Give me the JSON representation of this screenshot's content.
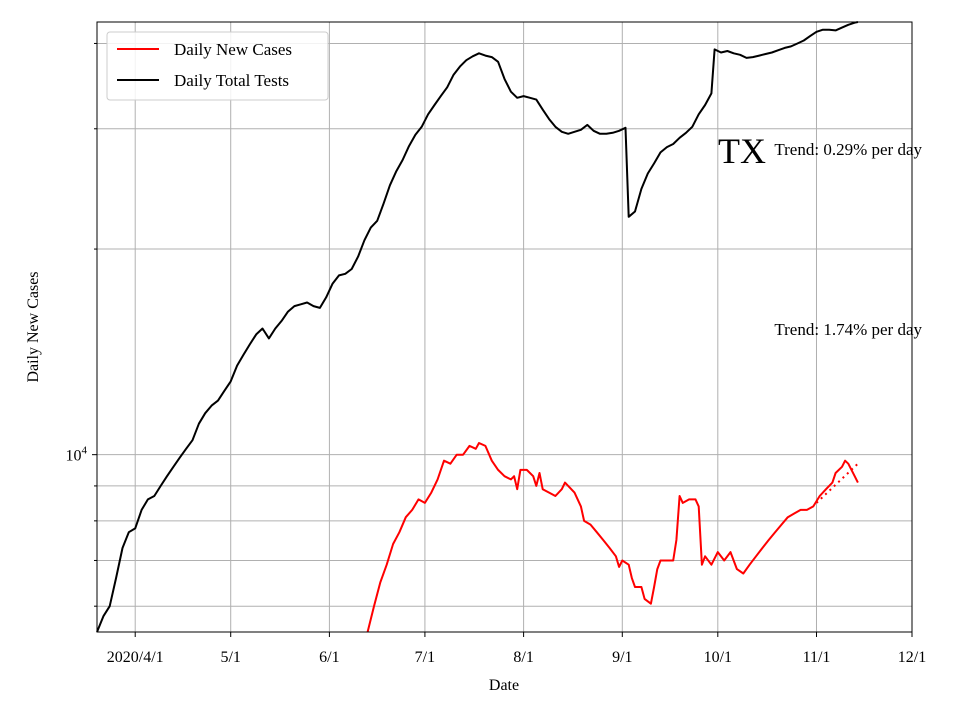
{
  "chart_data": {
    "type": "line",
    "y_scale": "log",
    "grid": true,
    "legend_position": "top-left",
    "xlabel": "Date",
    "ylabel": "Daily New Cases",
    "x_range": [
      "2020-03-20",
      "2020-12-01"
    ],
    "ylim": [
      5500,
      43000
    ],
    "x_ticks": [
      {
        "date": "2020-04-01",
        "label": "2020/4/1"
      },
      {
        "date": "2020-05-01",
        "label": "5/1"
      },
      {
        "date": "2020-06-01",
        "label": "6/1"
      },
      {
        "date": "2020-07-01",
        "label": "7/1"
      },
      {
        "date": "2020-08-01",
        "label": "8/1"
      },
      {
        "date": "2020-09-01",
        "label": "9/1"
      },
      {
        "date": "2020-10-01",
        "label": "10/1"
      },
      {
        "date": "2020-11-01",
        "label": "11/1"
      },
      {
        "date": "2020-12-01",
        "label": "12/1"
      }
    ],
    "y_major_tick": {
      "value": 10000,
      "label_base": "10",
      "label_exp": "4"
    },
    "y_minor_ticks": [
      6000,
      7000,
      8000,
      9000,
      20000,
      30000,
      40000
    ],
    "annotations": {
      "state": "TX",
      "trend_tests": "Trend: 0.29% per day",
      "trend_cases": "Trend: 1.74% per day"
    },
    "series": [
      {
        "name": "Daily New Cases",
        "color": "#ff0000",
        "points": [
          [
            "2020-06-13",
            5500
          ],
          [
            "2020-06-15",
            6000
          ],
          [
            "2020-06-17",
            6500
          ],
          [
            "2020-06-19",
            6900
          ],
          [
            "2020-06-21",
            7400
          ],
          [
            "2020-06-23",
            7700
          ],
          [
            "2020-06-25",
            8100
          ],
          [
            "2020-06-27",
            8300
          ],
          [
            "2020-06-29",
            8600
          ],
          [
            "2020-07-01",
            8500
          ],
          [
            "2020-07-03",
            8800
          ],
          [
            "2020-07-05",
            9200
          ],
          [
            "2020-07-07",
            9800
          ],
          [
            "2020-07-09",
            9700
          ],
          [
            "2020-07-11",
            10000
          ],
          [
            "2020-07-13",
            10000
          ],
          [
            "2020-07-15",
            10300
          ],
          [
            "2020-07-17",
            10200
          ],
          [
            "2020-07-18",
            10400
          ],
          [
            "2020-07-20",
            10300
          ],
          [
            "2020-07-22",
            9800
          ],
          [
            "2020-07-24",
            9500
          ],
          [
            "2020-07-26",
            9300
          ],
          [
            "2020-07-28",
            9200
          ],
          [
            "2020-07-29",
            9300
          ],
          [
            "2020-07-30",
            8900
          ],
          [
            "2020-07-31",
            9500
          ],
          [
            "2020-08-02",
            9500
          ],
          [
            "2020-08-04",
            9300
          ],
          [
            "2020-08-05",
            9000
          ],
          [
            "2020-08-06",
            9400
          ],
          [
            "2020-08-07",
            8900
          ],
          [
            "2020-08-09",
            8800
          ],
          [
            "2020-08-11",
            8700
          ],
          [
            "2020-08-13",
            8900
          ],
          [
            "2020-08-14",
            9100
          ],
          [
            "2020-08-15",
            9000
          ],
          [
            "2020-08-17",
            8800
          ],
          [
            "2020-08-19",
            8400
          ],
          [
            "2020-08-20",
            8000
          ],
          [
            "2020-08-22",
            7900
          ],
          [
            "2020-08-24",
            7700
          ],
          [
            "2020-08-26",
            7500
          ],
          [
            "2020-08-28",
            7300
          ],
          [
            "2020-08-30",
            7100
          ],
          [
            "2020-08-31",
            6850
          ],
          [
            "2020-09-01",
            7000
          ],
          [
            "2020-09-03",
            6900
          ],
          [
            "2020-09-04",
            6600
          ],
          [
            "2020-09-05",
            6400
          ],
          [
            "2020-09-07",
            6400
          ],
          [
            "2020-09-08",
            6150
          ],
          [
            "2020-09-10",
            6050
          ],
          [
            "2020-09-11",
            6400
          ],
          [
            "2020-09-12",
            6800
          ],
          [
            "2020-09-13",
            7000
          ],
          [
            "2020-09-15",
            7000
          ],
          [
            "2020-09-17",
            7000
          ],
          [
            "2020-09-18",
            7500
          ],
          [
            "2020-09-19",
            8700
          ],
          [
            "2020-09-20",
            8500
          ],
          [
            "2020-09-22",
            8600
          ],
          [
            "2020-09-24",
            8600
          ],
          [
            "2020-09-25",
            8400
          ],
          [
            "2020-09-26",
            6900
          ],
          [
            "2020-09-27",
            7100
          ],
          [
            "2020-09-29",
            6900
          ],
          [
            "2020-10-01",
            7200
          ],
          [
            "2020-10-03",
            7000
          ],
          [
            "2020-10-05",
            7200
          ],
          [
            "2020-10-07",
            6800
          ],
          [
            "2020-10-09",
            6700
          ],
          [
            "2020-10-11",
            6900
          ],
          [
            "2020-10-13",
            7100
          ],
          [
            "2020-10-15",
            7300
          ],
          [
            "2020-10-17",
            7500
          ],
          [
            "2020-10-19",
            7700
          ],
          [
            "2020-10-21",
            7900
          ],
          [
            "2020-10-23",
            8100
          ],
          [
            "2020-10-25",
            8200
          ],
          [
            "2020-10-27",
            8300
          ],
          [
            "2020-10-29",
            8300
          ],
          [
            "2020-10-31",
            8400
          ],
          [
            "2020-11-02",
            8700
          ],
          [
            "2020-11-04",
            8900
          ],
          [
            "2020-11-06",
            9100
          ],
          [
            "2020-11-07",
            9400
          ],
          [
            "2020-11-09",
            9600
          ],
          [
            "2020-11-10",
            9800
          ],
          [
            "2020-11-11",
            9700
          ],
          [
            "2020-11-12",
            9500
          ],
          [
            "2020-11-13",
            9300
          ],
          [
            "2020-11-14",
            9100
          ]
        ]
      },
      {
        "name": "Daily Total Tests",
        "color": "#000000",
        "points": [
          [
            "2020-03-20",
            5500
          ],
          [
            "2020-03-22",
            5800
          ],
          [
            "2020-03-24",
            6000
          ],
          [
            "2020-03-26",
            6600
          ],
          [
            "2020-03-28",
            7300
          ],
          [
            "2020-03-30",
            7700
          ],
          [
            "2020-04-01",
            7800
          ],
          [
            "2020-04-03",
            8300
          ],
          [
            "2020-04-05",
            8600
          ],
          [
            "2020-04-07",
            8700
          ],
          [
            "2020-04-09",
            9000
          ],
          [
            "2020-04-11",
            9300
          ],
          [
            "2020-04-13",
            9600
          ],
          [
            "2020-04-15",
            9900
          ],
          [
            "2020-04-17",
            10200
          ],
          [
            "2020-04-19",
            10500
          ],
          [
            "2020-04-21",
            11100
          ],
          [
            "2020-04-23",
            11500
          ],
          [
            "2020-04-25",
            11800
          ],
          [
            "2020-04-27",
            12000
          ],
          [
            "2020-04-29",
            12400
          ],
          [
            "2020-05-01",
            12800
          ],
          [
            "2020-05-03",
            13500
          ],
          [
            "2020-05-05",
            14000
          ],
          [
            "2020-05-07",
            14500
          ],
          [
            "2020-05-09",
            15000
          ],
          [
            "2020-05-11",
            15300
          ],
          [
            "2020-05-13",
            14800
          ],
          [
            "2020-05-15",
            15300
          ],
          [
            "2020-05-17",
            15700
          ],
          [
            "2020-05-19",
            16200
          ],
          [
            "2020-05-21",
            16500
          ],
          [
            "2020-05-23",
            16600
          ],
          [
            "2020-05-25",
            16700
          ],
          [
            "2020-05-27",
            16500
          ],
          [
            "2020-05-29",
            16400
          ],
          [
            "2020-05-31",
            17000
          ],
          [
            "2020-06-02",
            17800
          ],
          [
            "2020-06-04",
            18300
          ],
          [
            "2020-06-06",
            18400
          ],
          [
            "2020-06-08",
            18700
          ],
          [
            "2020-06-10",
            19500
          ],
          [
            "2020-06-12",
            20600
          ],
          [
            "2020-06-14",
            21500
          ],
          [
            "2020-06-16",
            22000
          ],
          [
            "2020-06-18",
            23300
          ],
          [
            "2020-06-20",
            24800
          ],
          [
            "2020-06-22",
            26000
          ],
          [
            "2020-06-24",
            27000
          ],
          [
            "2020-06-26",
            28300
          ],
          [
            "2020-06-28",
            29400
          ],
          [
            "2020-06-30",
            30200
          ],
          [
            "2020-07-02",
            31500
          ],
          [
            "2020-07-04",
            32500
          ],
          [
            "2020-07-06",
            33500
          ],
          [
            "2020-07-08",
            34500
          ],
          [
            "2020-07-10",
            36000
          ],
          [
            "2020-07-12",
            37000
          ],
          [
            "2020-07-14",
            37800
          ],
          [
            "2020-07-16",
            38300
          ],
          [
            "2020-07-18",
            38700
          ],
          [
            "2020-07-20",
            38400
          ],
          [
            "2020-07-22",
            38200
          ],
          [
            "2020-07-24",
            37600
          ],
          [
            "2020-07-26",
            35500
          ],
          [
            "2020-07-28",
            34000
          ],
          [
            "2020-07-30",
            33300
          ],
          [
            "2020-08-01",
            33500
          ],
          [
            "2020-08-03",
            33300
          ],
          [
            "2020-08-05",
            33100
          ],
          [
            "2020-08-07",
            32000
          ],
          [
            "2020-08-09",
            31000
          ],
          [
            "2020-08-11",
            30200
          ],
          [
            "2020-08-13",
            29700
          ],
          [
            "2020-08-15",
            29500
          ],
          [
            "2020-08-17",
            29700
          ],
          [
            "2020-08-19",
            29900
          ],
          [
            "2020-08-21",
            30400
          ],
          [
            "2020-08-23",
            29800
          ],
          [
            "2020-08-25",
            29500
          ],
          [
            "2020-08-27",
            29500
          ],
          [
            "2020-08-29",
            29600
          ],
          [
            "2020-08-31",
            29800
          ],
          [
            "2020-09-02",
            30100
          ],
          [
            "2020-09-03",
            22300
          ],
          [
            "2020-09-05",
            22700
          ],
          [
            "2020-09-07",
            24500
          ],
          [
            "2020-09-09",
            25800
          ],
          [
            "2020-09-11",
            26700
          ],
          [
            "2020-09-13",
            27700
          ],
          [
            "2020-09-15",
            28200
          ],
          [
            "2020-09-17",
            28500
          ],
          [
            "2020-09-19",
            29100
          ],
          [
            "2020-09-21",
            29600
          ],
          [
            "2020-09-23",
            30200
          ],
          [
            "2020-09-25",
            31500
          ],
          [
            "2020-09-27",
            32500
          ],
          [
            "2020-09-29",
            33800
          ],
          [
            "2020-09-30",
            39200
          ],
          [
            "2020-10-02",
            38800
          ],
          [
            "2020-10-04",
            39000
          ],
          [
            "2020-10-06",
            38700
          ],
          [
            "2020-10-08",
            38500
          ],
          [
            "2020-10-10",
            38100
          ],
          [
            "2020-10-12",
            38200
          ],
          [
            "2020-10-14",
            38400
          ],
          [
            "2020-10-16",
            38600
          ],
          [
            "2020-10-18",
            38800
          ],
          [
            "2020-10-20",
            39100
          ],
          [
            "2020-10-22",
            39400
          ],
          [
            "2020-10-24",
            39600
          ],
          [
            "2020-10-26",
            40000
          ],
          [
            "2020-10-28",
            40400
          ],
          [
            "2020-10-30",
            41000
          ],
          [
            "2020-11-01",
            41600
          ],
          [
            "2020-11-03",
            41900
          ],
          [
            "2020-11-05",
            41900
          ],
          [
            "2020-11-07",
            41800
          ],
          [
            "2020-11-09",
            42200
          ],
          [
            "2020-11-11",
            42600
          ],
          [
            "2020-11-13",
            42900
          ],
          [
            "2020-11-14",
            43000
          ]
        ]
      },
      {
        "name": "",
        "color": "#ff0000",
        "dotted": true,
        "points": [
          [
            "2020-11-01",
            8500
          ],
          [
            "2020-11-14",
            9700
          ]
        ]
      }
    ]
  }
}
